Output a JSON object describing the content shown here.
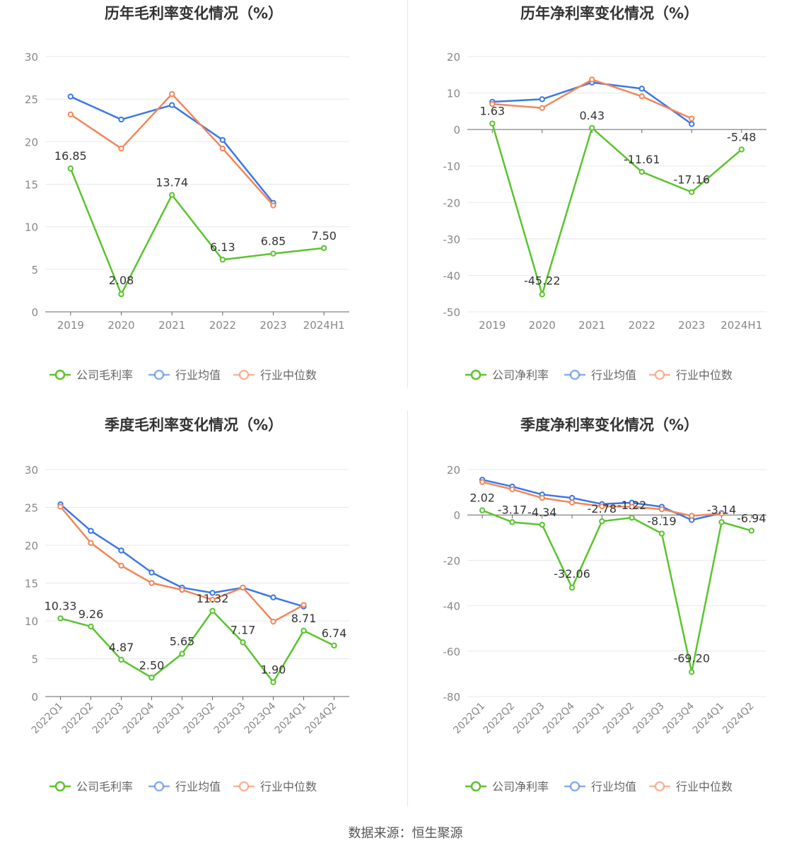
{
  "source": "数据来源：恒生聚源",
  "colors": {
    "company": "#5ac42d",
    "industry_avg": "#3b78e6",
    "industry_median": "#f2875a",
    "grid": "#e8e8ee",
    "axis": "#666666",
    "tick_text": "#888888",
    "title": "#333333"
  },
  "legend_labels": {
    "industry_avg": "行业均值",
    "industry_median": "行业中位数"
  },
  "chart_data": [
    {
      "type": "line",
      "title": "历年毛利率变化情况（%）",
      "categories": [
        "2019",
        "2020",
        "2021",
        "2022",
        "2023",
        "2024H1"
      ],
      "ylim": [
        0,
        30
      ],
      "yticks": [
        0,
        5,
        10,
        15,
        20,
        25,
        30
      ],
      "grid": true,
      "legend": "bottom",
      "series": [
        {
          "name": "公司毛利率",
          "key": "company",
          "values": [
            16.85,
            2.08,
            13.74,
            6.13,
            6.85,
            7.5
          ],
          "labels": [
            "16.85",
            "2.08",
            "13.74",
            "6.13",
            "6.85",
            "7.50"
          ]
        },
        {
          "name": "行业均值",
          "key": "industry_avg",
          "values": [
            25.3,
            22.6,
            24.3,
            20.2,
            12.8,
            null
          ]
        },
        {
          "name": "行业中位数",
          "key": "industry_median",
          "values": [
            23.2,
            19.2,
            25.6,
            19.2,
            12.5,
            null
          ]
        }
      ]
    },
    {
      "type": "line",
      "title": "历年净利率变化情况（%）",
      "categories": [
        "2019",
        "2020",
        "2021",
        "2022",
        "2023",
        "2024H1"
      ],
      "ylim": [
        -50,
        20
      ],
      "yticks": [
        -50,
        -40,
        -30,
        -20,
        -10,
        0,
        10,
        20
      ],
      "grid": true,
      "legend": "bottom",
      "series": [
        {
          "name": "公司净利率",
          "key": "company",
          "values": [
            1.63,
            -45.22,
            0.43,
            -11.61,
            -17.16,
            -5.48
          ],
          "labels": [
            "1.63",
            "-45.22",
            "0.43",
            "-11.61",
            "-17.16",
            "-5.48"
          ]
        },
        {
          "name": "行业均值",
          "key": "industry_avg",
          "values": [
            7.6,
            8.3,
            12.9,
            11.2,
            1.5,
            null
          ]
        },
        {
          "name": "行业中位数",
          "key": "industry_median",
          "values": [
            7.0,
            5.9,
            13.7,
            9.1,
            3.0,
            null
          ]
        }
      ]
    },
    {
      "type": "line",
      "title": "季度毛利率变化情况（%）",
      "categories": [
        "2022Q1",
        "2022Q2",
        "2022Q3",
        "2022Q4",
        "2023Q1",
        "2023Q2",
        "2023Q3",
        "2023Q4",
        "2024Q1",
        "2024Q2"
      ],
      "ylim": [
        0,
        30
      ],
      "yticks": [
        0,
        5,
        10,
        15,
        20,
        25,
        30
      ],
      "grid": true,
      "legend": "bottom",
      "series": [
        {
          "name": "公司毛利率",
          "key": "company",
          "values": [
            10.33,
            9.26,
            4.87,
            2.5,
            5.65,
            11.32,
            7.17,
            1.9,
            8.71,
            6.74
          ],
          "labels": [
            "10.33",
            "9.26",
            "4.87",
            "2.50",
            "5.65",
            "11.32",
            "7.17",
            "1.90",
            "8.71",
            "6.74"
          ]
        },
        {
          "name": "行业均值",
          "key": "industry_avg",
          "values": [
            25.4,
            21.9,
            19.3,
            16.4,
            14.4,
            13.7,
            14.4,
            13.1,
            11.9,
            null
          ]
        },
        {
          "name": "行业中位数",
          "key": "industry_median",
          "values": [
            25.1,
            20.3,
            17.3,
            15.0,
            14.1,
            12.8,
            14.4,
            9.9,
            12.1,
            null
          ]
        }
      ]
    },
    {
      "type": "line",
      "title": "季度净利率变化情况（%）",
      "categories": [
        "2022Q1",
        "2022Q2",
        "2022Q3",
        "2022Q4",
        "2023Q1",
        "2023Q2",
        "2023Q3",
        "2023Q4",
        "2024Q1",
        "2024Q2"
      ],
      "ylim": [
        -80,
        20
      ],
      "yticks": [
        -80,
        -60,
        -40,
        -20,
        0,
        20
      ],
      "grid": true,
      "legend": "bottom",
      "series": [
        {
          "name": "公司净利率",
          "key": "company",
          "values": [
            2.02,
            -3.17,
            -4.34,
            -32.06,
            -2.78,
            -1.22,
            -8.19,
            -69.2,
            -3.14,
            -6.94
          ],
          "labels": [
            "2.02",
            "-3.17",
            "-4.34",
            "-32.06",
            "-2.78",
            "-1.22",
            "-8.19",
            "-69.20",
            "-3.14",
            "-6.94"
          ]
        },
        {
          "name": "行业均值",
          "key": "industry_avg",
          "values": [
            15.5,
            12.5,
            9.0,
            7.5,
            4.8,
            5.4,
            3.6,
            -2.2,
            0.8,
            null
          ]
        },
        {
          "name": "行业中位数",
          "key": "industry_median",
          "values": [
            14.5,
            11.3,
            7.5,
            5.5,
            3.8,
            3.6,
            2.5,
            -0.4,
            0.6,
            null
          ]
        }
      ]
    }
  ]
}
